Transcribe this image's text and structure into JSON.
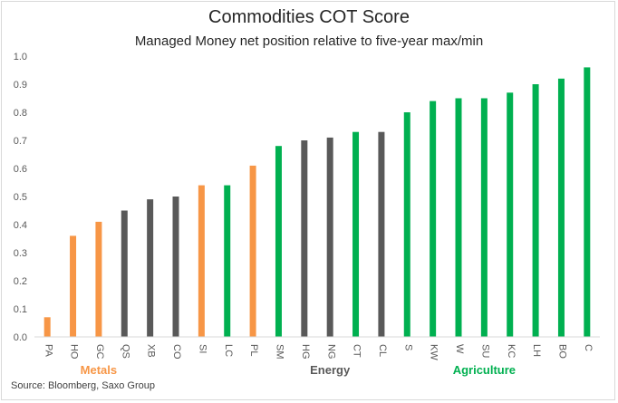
{
  "chart_data": {
    "type": "bar",
    "title": "Commodities COT Score",
    "subtitle": "Managed Money net position relative to five-year max/min",
    "xlabel": "",
    "ylabel": "",
    "ylim": [
      0,
      1.0
    ],
    "yticks": [
      "0.0",
      "0.1",
      "0.2",
      "0.3",
      "0.4",
      "0.5",
      "0.6",
      "0.7",
      "0.8",
      "0.9",
      "1.0"
    ],
    "grid": false,
    "categories": [
      "PA",
      "HO",
      "GC",
      "QS",
      "XB",
      "CO",
      "SI",
      "LC",
      "PL",
      "SM",
      "HG",
      "NG",
      "CT",
      "CL",
      "S",
      "KW",
      "W",
      "SU",
      "KC",
      "LH",
      "BO",
      "C"
    ],
    "values": [
      0.07,
      0.36,
      0.41,
      0.45,
      0.49,
      0.5,
      0.54,
      0.54,
      0.61,
      0.68,
      0.7,
      0.71,
      0.73,
      0.73,
      0.8,
      0.84,
      0.85,
      0.85,
      0.87,
      0.9,
      0.92,
      0.96
    ],
    "groups": [
      "metals",
      "metals",
      "metals",
      "energy",
      "energy",
      "energy",
      "metals",
      "agriculture",
      "metals",
      "agriculture",
      "energy",
      "energy",
      "agriculture",
      "energy",
      "agriculture",
      "agriculture",
      "agriculture",
      "agriculture",
      "agriculture",
      "agriculture",
      "agriculture",
      "agriculture"
    ],
    "group_labels": [
      {
        "key": "metals",
        "label": "Metals",
        "color": "#f79646"
      },
      {
        "key": "energy",
        "label": "Energy",
        "color": "#595959"
      },
      {
        "key": "agriculture",
        "label": "Agriculture",
        "color": "#00b050"
      }
    ]
  },
  "source": "Source: Bloomberg, Saxo Group"
}
